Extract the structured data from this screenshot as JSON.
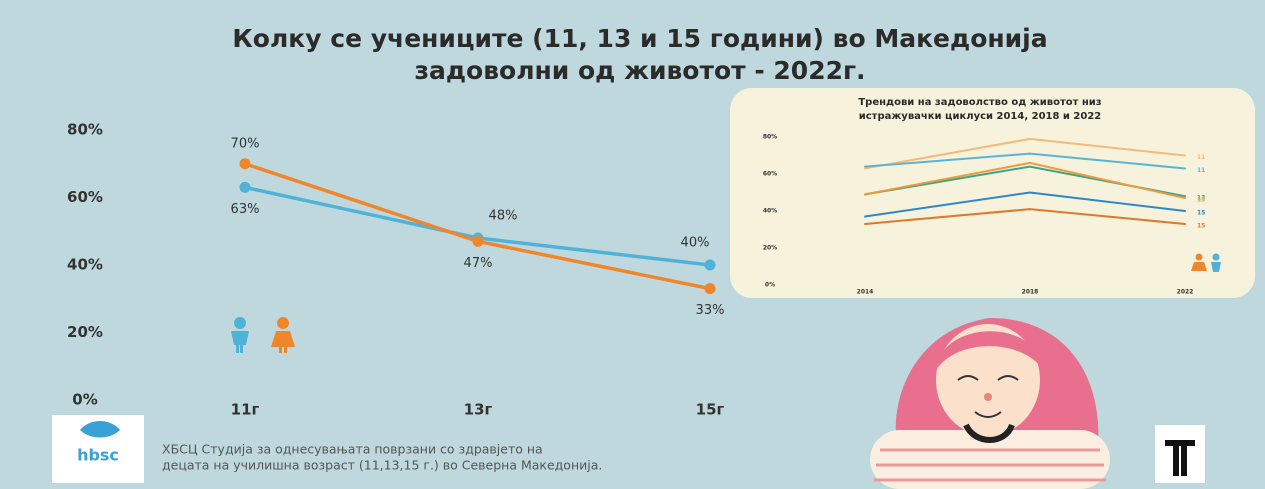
{
  "chart_data": [
    {
      "type": "line",
      "title": [
        "Колку се учениците (11, 13 и 15 години) во Македонија",
        "задоволни од животот - 2022г."
      ],
      "categories": [
        "11г",
        "13г",
        "15г"
      ],
      "series": [
        {
          "color": "#4fb3d9",
          "values": [
            63,
            48,
            40
          ],
          "value_labels": [
            "63%",
            "48%",
            "40%"
          ]
        },
        {
          "color": "#f0862c",
          "values": [
            70,
            47,
            33
          ],
          "value_labels": [
            "70%",
            "47%",
            "33%"
          ]
        }
      ],
      "ylim": [
        0,
        80
      ],
      "yticks": [
        {
          "value": 0,
          "label": "0%"
        },
        {
          "value": 20,
          "label": "20%"
        },
        {
          "value": 40,
          "label": "40%"
        },
        {
          "value": 60,
          "label": "60%"
        },
        {
          "value": 80,
          "label": "80%"
        }
      ]
    },
    {
      "type": "line",
      "title": [
        "Трендови на задоволство од животот низ",
        "истражувачки циклуси 2014, 2018 и 2022"
      ],
      "categories": [
        "2014",
        "2018",
        "2022"
      ],
      "series": [
        {
          "name": "11",
          "color": "#f6b97a",
          "values": [
            63,
            79,
            70
          ]
        },
        {
          "name": "11",
          "color": "#5ab4d6",
          "values": [
            64,
            71,
            63
          ]
        },
        {
          "name": "13",
          "color": "#3aa58f",
          "values": [
            49,
            64,
            48
          ]
        },
        {
          "name": "13",
          "color": "#f09a3a",
          "values": [
            49,
            66,
            47
          ]
        },
        {
          "name": "15",
          "color": "#2f86c9",
          "values": [
            37,
            50,
            40
          ]
        },
        {
          "name": "15",
          "color": "#e0782a",
          "values": [
            33,
            41,
            33
          ]
        }
      ],
      "ylim": [
        0,
        80
      ],
      "yticks": [
        {
          "value": 0,
          "label": "0%"
        },
        {
          "value": 20,
          "label": "20%"
        },
        {
          "value": 40,
          "label": "40%"
        },
        {
          "value": 60,
          "label": "60%"
        },
        {
          "value": 80,
          "label": "80%"
        }
      ]
    }
  ],
  "footer": [
    "ХБСЦ Студија за однесувањата поврзани со здравјето на",
    "децата на училишна возраст (11,13,15 г.) во Северна Македонија."
  ],
  "logo": "hbsc"
}
